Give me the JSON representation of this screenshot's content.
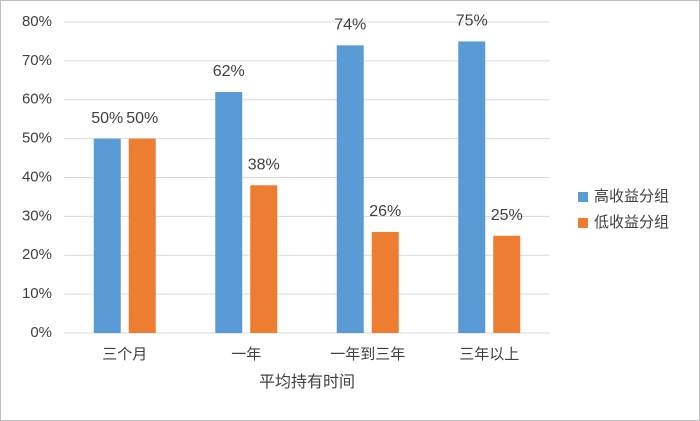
{
  "chart_data": {
    "type": "bar",
    "x_label": "平均持有时间",
    "categories": [
      "三个月",
      "一年",
      "一年到三年",
      "三年以上"
    ],
    "series": [
      {
        "name": "高收益分组",
        "color": "#5b9bd5",
        "values": [
          50,
          62,
          74,
          75
        ],
        "value_labels": [
          "50%",
          "62%",
          "74%",
          "75%"
        ]
      },
      {
        "name": "低收益分组",
        "color": "#ed7d31",
        "values": [
          50,
          38,
          26,
          25
        ],
        "value_labels": [
          "50%",
          "38%",
          "26%",
          "25%"
        ]
      }
    ],
    "ylim": [
      0,
      80
    ],
    "yticks": [
      {
        "value": 0,
        "label": "0%"
      },
      {
        "value": 10,
        "label": "10%"
      },
      {
        "value": 20,
        "label": "20%"
      },
      {
        "value": 30,
        "label": "30%"
      },
      {
        "value": 40,
        "label": "40%"
      },
      {
        "value": 50,
        "label": "50%"
      },
      {
        "value": 60,
        "label": "60%"
      },
      {
        "value": 70,
        "label": "70%"
      },
      {
        "value": 80,
        "label": "80%"
      }
    ],
    "grid": true,
    "legend": "right"
  }
}
